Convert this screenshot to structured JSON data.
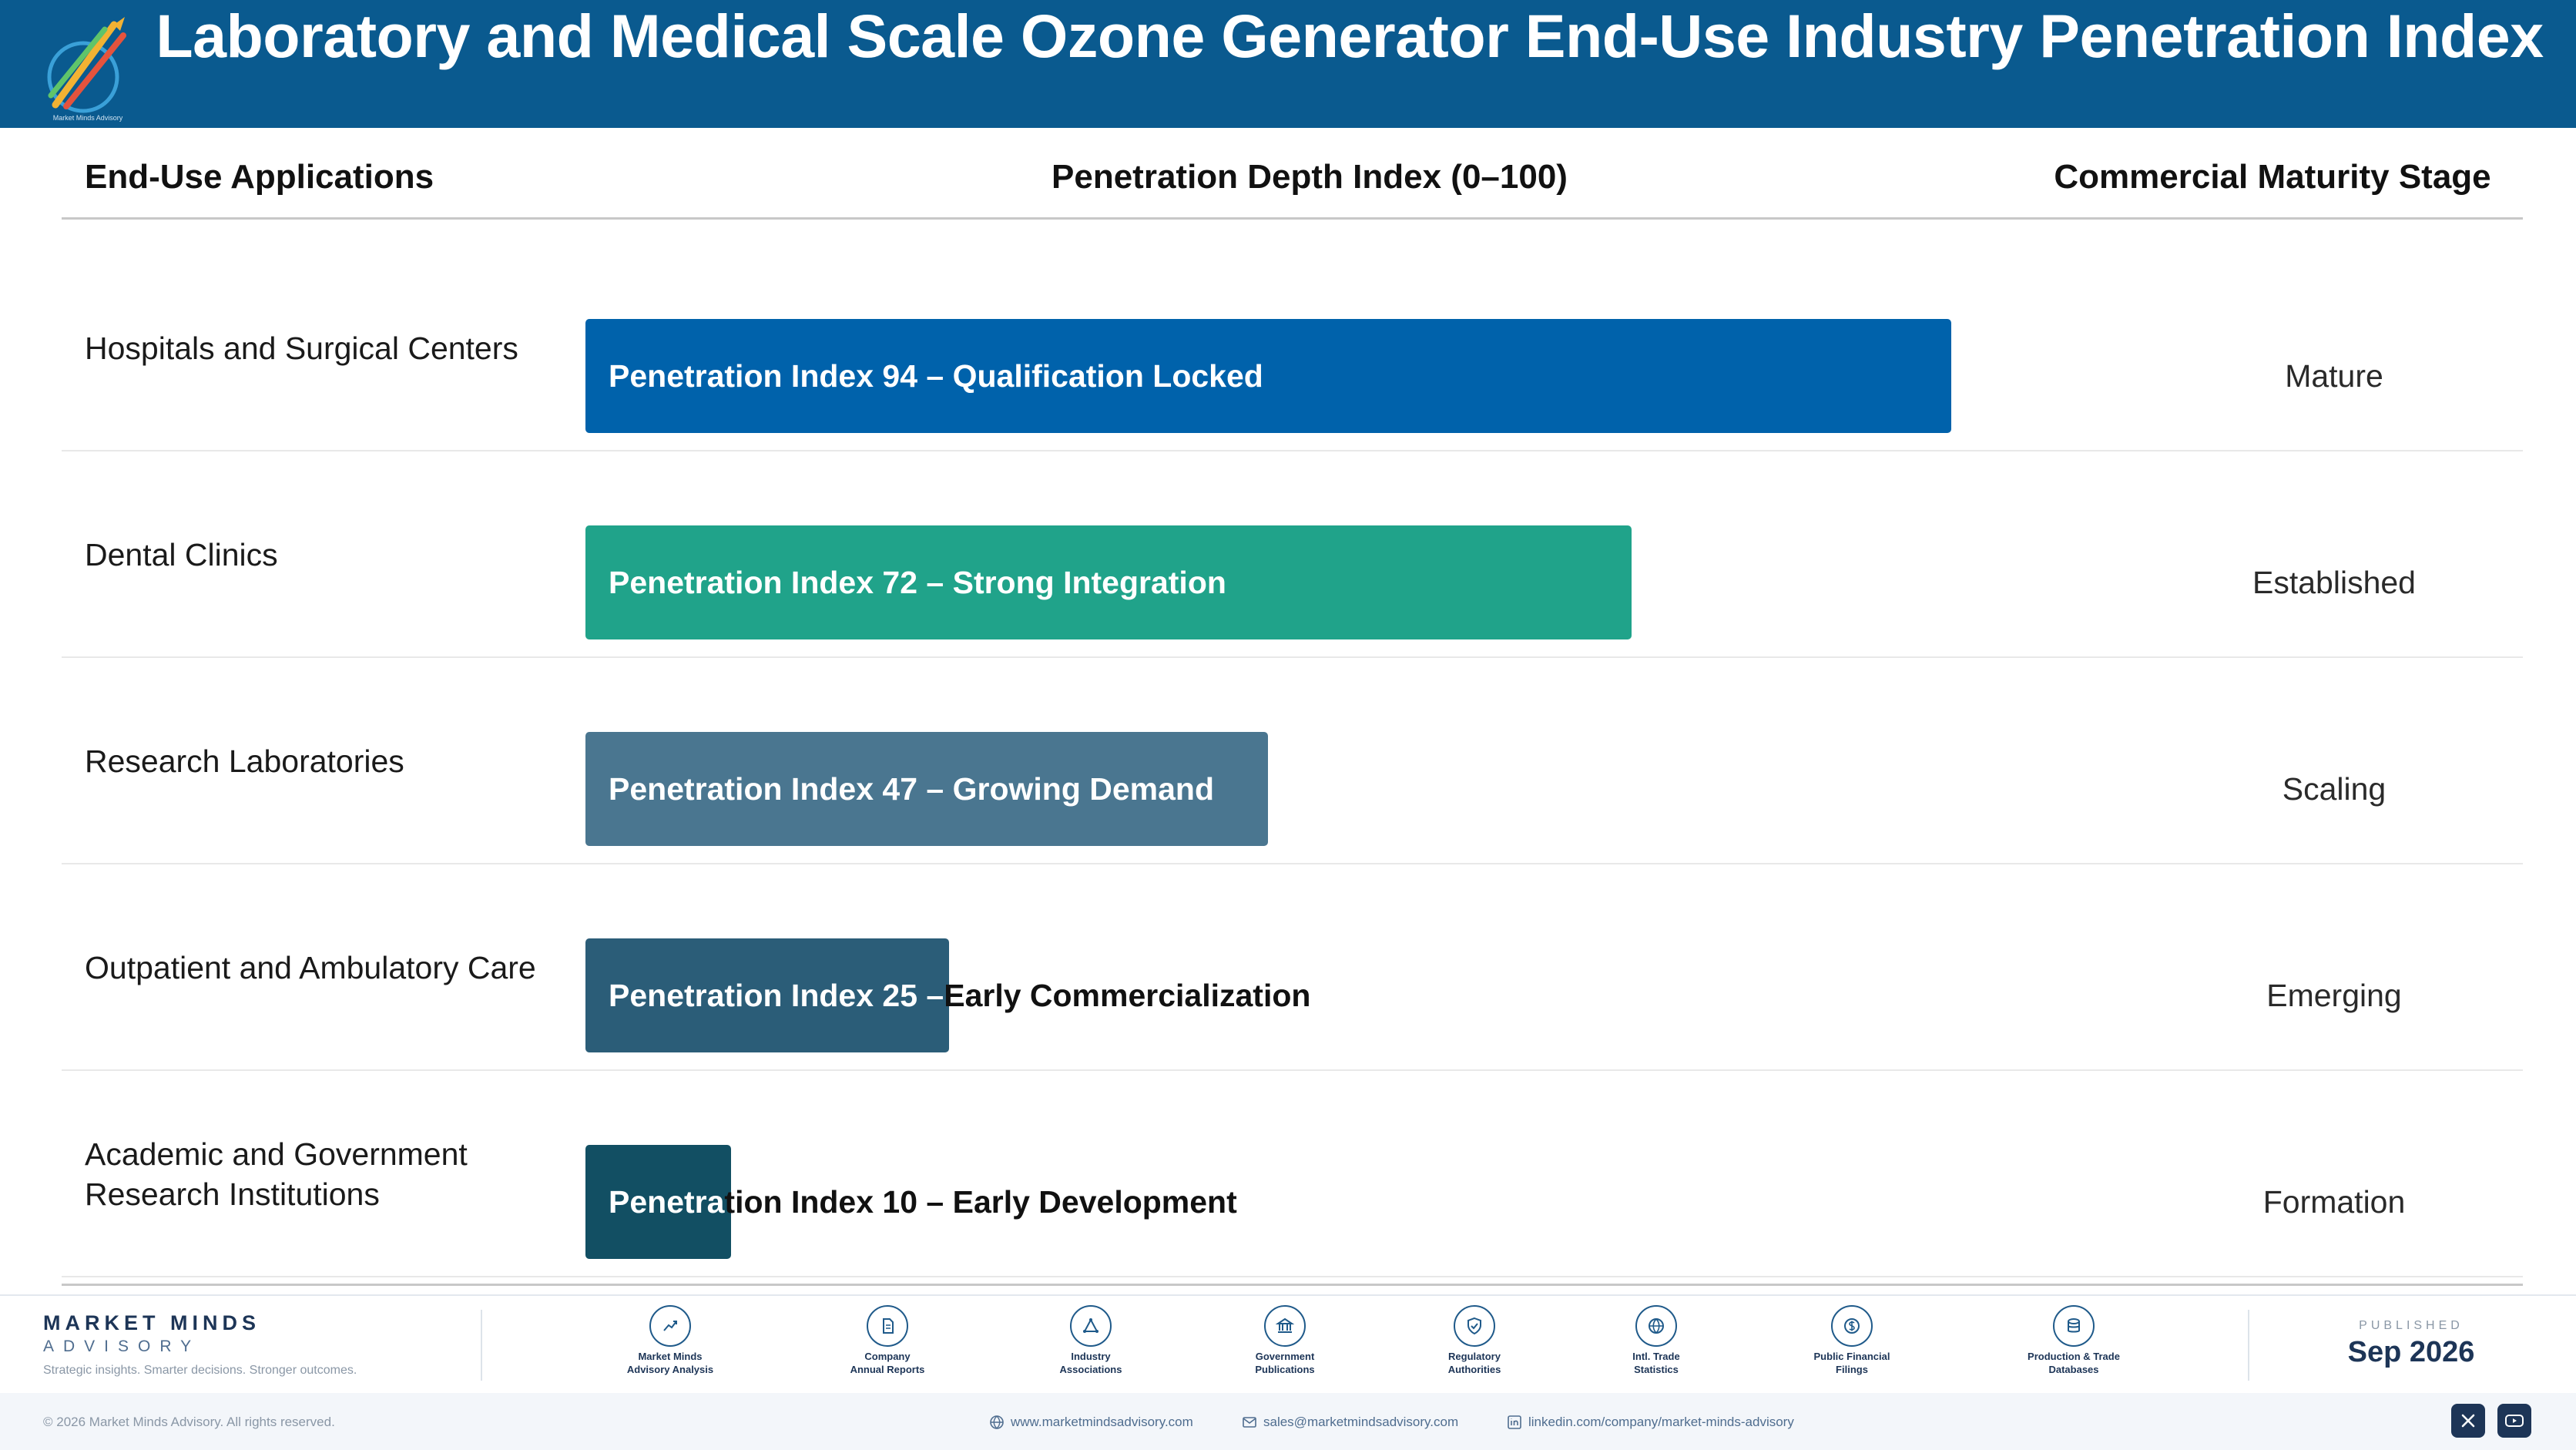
{
  "header": {
    "title": "Laboratory and Medical Scale Ozone Generator End-Use Industry Penetration Index"
  },
  "columns": {
    "applications": "End-Use Applications",
    "index": "Penetration Depth Index (0–100)",
    "stage": "Commercial Maturity Stage"
  },
  "chart_data": {
    "type": "bar",
    "orientation": "horizontal",
    "categories": [
      "Hospitals and Surgical Centers",
      "Dental Clinics",
      "Research Laboratories",
      "Outpatient and Ambulatory Care",
      "Academic and Government Research Institutions"
    ],
    "values": [
      94,
      72,
      47,
      25,
      10
    ],
    "xlim": [
      0,
      100
    ],
    "bar_labels": [
      "Penetration Index 94 – Qualification Locked",
      "Penetration Index 72 – Strong Integration",
      "Penetration Index 47 – Growing Demand",
      "Penetration Index 25 – Early Commercialization",
      "Penetration Index 10 – Early Development"
    ],
    "stages": [
      "Mature",
      "Established",
      "Scaling",
      "Emerging",
      "Formation"
    ],
    "colors": [
      "#0062ab",
      "#20a38a",
      "#4a7690",
      "#2b5d78",
      "#124f63"
    ]
  },
  "footer": {
    "brand_line1": "MARKET MINDS",
    "brand_line2": "ADVISORY",
    "tagline": "Strategic insights. Smarter decisions. Stronger outcomes.",
    "sources": [
      {
        "icon": "trend-chart-icon",
        "line1": "Market Minds",
        "line2": "Advisory Analysis"
      },
      {
        "icon": "document-icon",
        "line1": "Company",
        "line2": "Annual Reports"
      },
      {
        "icon": "network-icon",
        "line1": "Industry",
        "line2": "Associations"
      },
      {
        "icon": "government-building-icon",
        "line1": "Government",
        "line2": "Publications"
      },
      {
        "icon": "shield-check-icon",
        "line1": "Regulatory",
        "line2": "Authorities"
      },
      {
        "icon": "globe-icon",
        "line1": "Intl. Trade",
        "line2": "Statistics"
      },
      {
        "icon": "coin-icon",
        "line1": "Public Financial",
        "line2": "Filings"
      },
      {
        "icon": "database-icon",
        "line1": "Production & Trade",
        "line2": "Databases"
      }
    ],
    "published_label": "PUBLISHED",
    "published_value": "Sep 2026",
    "copyright": "© 2026 Market Minds Advisory. All rights reserved.",
    "website": "www.marketmindsadvisory.com",
    "email": "sales@marketmindsadvisory.com",
    "linkedin": "linkedin.com/company/market-minds-advisory",
    "accent_color": "#0a5a8f"
  }
}
